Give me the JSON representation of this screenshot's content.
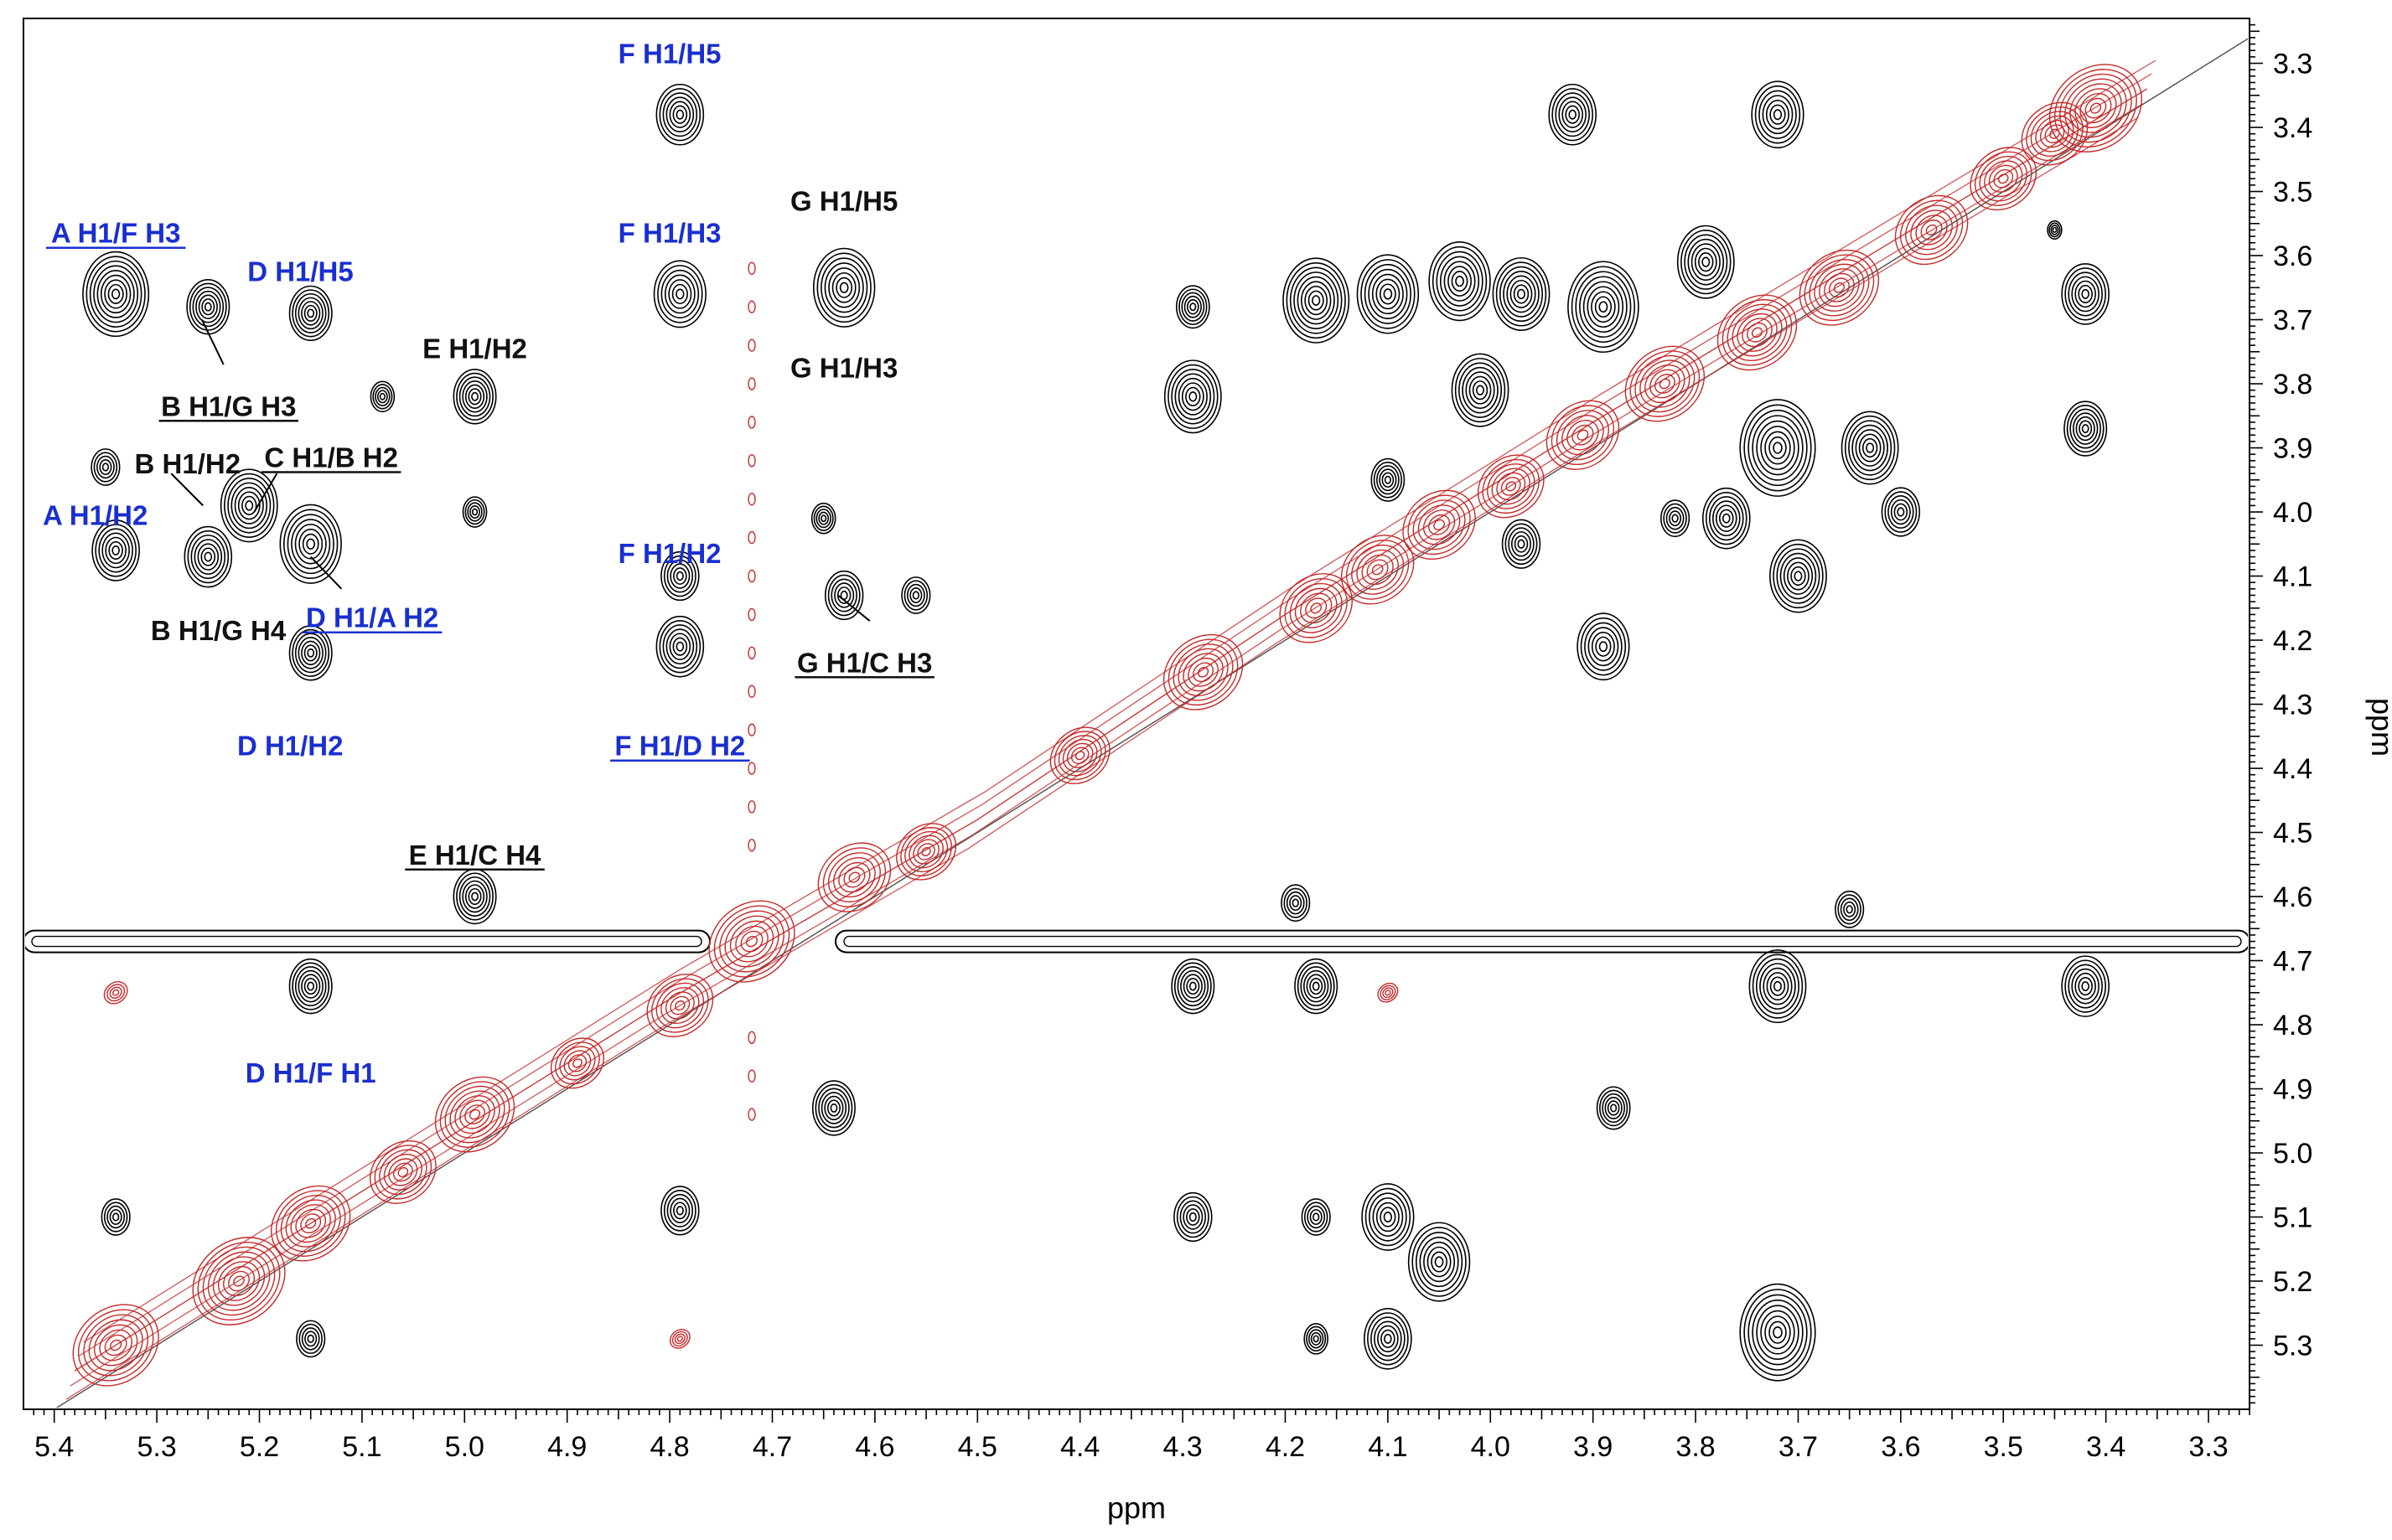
{
  "chart_data": {
    "type": "scatter",
    "xlabel": "ppm",
    "ylabel": "ppm",
    "xlim": [
      5.43,
      3.26
    ],
    "ylim": [
      3.23,
      5.4
    ],
    "x_reversed": true,
    "y_top_to_bottom": true,
    "x_ticks": [
      "5.4",
      "5.3",
      "5.2",
      "5.1",
      "5.0",
      "4.9",
      "4.8",
      "4.7",
      "4.6",
      "4.5",
      "4.4",
      "4.3",
      "4.2",
      "4.1",
      "4.0",
      "3.9",
      "3.8",
      "3.7",
      "3.6",
      "3.5",
      "3.4",
      "3.3"
    ],
    "y_ticks": [
      "3.3",
      "3.4",
      "3.5",
      "3.6",
      "3.7",
      "3.8",
      "3.9",
      "4.0",
      "4.1",
      "4.2",
      "4.3",
      "4.4",
      "4.5",
      "4.6",
      "4.7",
      "4.8",
      "4.9",
      "5.0",
      "5.1",
      "5.2",
      "5.3"
    ],
    "grid": false,
    "legend": "none",
    "colors": {
      "noe": "#000000",
      "diagonal": "#c62828",
      "label_blue": "#1a2fd0",
      "label_black": "#111111",
      "axis": "#000000"
    },
    "water_ridge_y": 4.67,
    "water_column_x": 4.72,
    "diagonal_peaks": [
      {
        "x": 5.34,
        "y": 5.3,
        "s": 1.3
      },
      {
        "x": 5.22,
        "y": 5.2,
        "s": 1.4
      },
      {
        "x": 5.15,
        "y": 5.11,
        "s": 1.2
      },
      {
        "x": 5.06,
        "y": 5.03,
        "s": 1.0
      },
      {
        "x": 4.99,
        "y": 4.94,
        "s": 1.2
      },
      {
        "x": 4.89,
        "y": 4.86,
        "s": 0.8
      },
      {
        "x": 4.79,
        "y": 4.77,
        "s": 1.0
      },
      {
        "x": 4.72,
        "y": 4.67,
        "s": 1.3
      },
      {
        "x": 4.62,
        "y": 4.57,
        "s": 1.1
      },
      {
        "x": 4.55,
        "y": 4.53,
        "s": 0.9
      },
      {
        "x": 4.4,
        "y": 4.38,
        "s": 0.9
      },
      {
        "x": 4.28,
        "y": 4.25,
        "s": 1.2
      },
      {
        "x": 4.17,
        "y": 4.15,
        "s": 1.1
      },
      {
        "x": 4.11,
        "y": 4.09,
        "s": 1.1
      },
      {
        "x": 4.05,
        "y": 4.02,
        "s": 1.1
      },
      {
        "x": 3.98,
        "y": 3.96,
        "s": 1.0
      },
      {
        "x": 3.91,
        "y": 3.88,
        "s": 1.1
      },
      {
        "x": 3.83,
        "y": 3.8,
        "s": 1.2
      },
      {
        "x": 3.74,
        "y": 3.72,
        "s": 1.2
      },
      {
        "x": 3.66,
        "y": 3.65,
        "s": 1.2
      },
      {
        "x": 3.57,
        "y": 3.56,
        "s": 1.1
      },
      {
        "x": 3.5,
        "y": 3.48,
        "s": 1.0
      },
      {
        "x": 3.45,
        "y": 3.41,
        "s": 1.0
      },
      {
        "x": 3.41,
        "y": 3.37,
        "s": 1.4
      },
      {
        "x": 4.1,
        "y": 4.75,
        "s": 0.3
      },
      {
        "x": 5.34,
        "y": 4.75,
        "s": 0.35
      },
      {
        "x": 4.79,
        "y": 5.29,
        "s": 0.3
      }
    ],
    "cross_peaks": [
      {
        "x": 5.34,
        "y": 3.66,
        "s": 1.4
      },
      {
        "x": 5.25,
        "y": 3.68,
        "s": 0.9
      },
      {
        "x": 5.15,
        "y": 3.69,
        "s": 0.9
      },
      {
        "x": 5.08,
        "y": 3.82,
        "s": 0.5
      },
      {
        "x": 5.35,
        "y": 3.93,
        "s": 0.6
      },
      {
        "x": 5.34,
        "y": 4.06,
        "s": 1.0
      },
      {
        "x": 5.25,
        "y": 4.07,
        "s": 1.0
      },
      {
        "x": 5.21,
        "y": 3.99,
        "s": 1.2
      },
      {
        "x": 5.15,
        "y": 4.05,
        "s": 1.3
      },
      {
        "x": 5.15,
        "y": 4.22,
        "s": 0.9
      },
      {
        "x": 4.99,
        "y": 3.82,
        "s": 0.9
      },
      {
        "x": 4.99,
        "y": 4.0,
        "s": 0.5
      },
      {
        "x": 4.99,
        "y": 4.6,
        "s": 0.9
      },
      {
        "x": 5.15,
        "y": 4.74,
        "s": 0.9
      },
      {
        "x": 5.34,
        "y": 5.1,
        "s": 0.6
      },
      {
        "x": 5.15,
        "y": 5.29,
        "s": 0.6
      },
      {
        "x": 4.79,
        "y": 3.38,
        "s": 1.0
      },
      {
        "x": 4.79,
        "y": 3.66,
        "s": 1.1
      },
      {
        "x": 4.79,
        "y": 4.1,
        "s": 0.8
      },
      {
        "x": 4.79,
        "y": 4.21,
        "s": 1.0
      },
      {
        "x": 4.79,
        "y": 5.09,
        "s": 0.8
      },
      {
        "x": 4.63,
        "y": 3.65,
        "s": 1.3
      },
      {
        "x": 4.65,
        "y": 4.01,
        "s": 0.5
      },
      {
        "x": 4.63,
        "y": 4.13,
        "s": 0.8
      },
      {
        "x": 4.56,
        "y": 4.13,
        "s": 0.6
      },
      {
        "x": 4.64,
        "y": 4.93,
        "s": 0.9
      },
      {
        "x": 4.29,
        "y": 3.68,
        "s": 0.7
      },
      {
        "x": 4.29,
        "y": 3.82,
        "s": 1.2
      },
      {
        "x": 4.29,
        "y": 4.74,
        "s": 0.9
      },
      {
        "x": 4.29,
        "y": 5.1,
        "s": 0.8
      },
      {
        "x": 4.17,
        "y": 3.67,
        "s": 1.4
      },
      {
        "x": 4.17,
        "y": 4.74,
        "s": 0.9
      },
      {
        "x": 4.17,
        "y": 5.1,
        "s": 0.6
      },
      {
        "x": 4.17,
        "y": 5.29,
        "s": 0.5
      },
      {
        "x": 4.1,
        "y": 3.66,
        "s": 1.3
      },
      {
        "x": 4.1,
        "y": 3.95,
        "s": 0.7
      },
      {
        "x": 4.1,
        "y": 5.1,
        "s": 1.1
      },
      {
        "x": 4.1,
        "y": 5.29,
        "s": 1.0
      },
      {
        "x": 4.05,
        "y": 5.17,
        "s": 1.3
      },
      {
        "x": 4.03,
        "y": 3.64,
        "s": 1.3
      },
      {
        "x": 4.01,
        "y": 3.81,
        "s": 1.2
      },
      {
        "x": 3.97,
        "y": 3.66,
        "s": 1.2
      },
      {
        "x": 3.97,
        "y": 4.05,
        "s": 0.8
      },
      {
        "x": 3.92,
        "y": 3.38,
        "s": 1.0
      },
      {
        "x": 3.89,
        "y": 3.68,
        "s": 1.5
      },
      {
        "x": 3.89,
        "y": 4.21,
        "s": 1.1
      },
      {
        "x": 3.88,
        "y": 4.93,
        "s": 0.7
      },
      {
        "x": 3.79,
        "y": 3.61,
        "s": 1.2
      },
      {
        "x": 3.72,
        "y": 3.38,
        "s": 1.1
      },
      {
        "x": 3.72,
        "y": 3.9,
        "s": 1.6
      },
      {
        "x": 3.77,
        "y": 4.01,
        "s": 1.0
      },
      {
        "x": 3.82,
        "y": 4.01,
        "s": 0.6
      },
      {
        "x": 3.7,
        "y": 4.1,
        "s": 1.2
      },
      {
        "x": 3.63,
        "y": 3.9,
        "s": 1.2
      },
      {
        "x": 3.6,
        "y": 4.0,
        "s": 0.8
      },
      {
        "x": 3.72,
        "y": 4.74,
        "s": 1.2
      },
      {
        "x": 3.72,
        "y": 5.28,
        "s": 1.6
      },
      {
        "x": 3.42,
        "y": 3.66,
        "s": 1.0
      },
      {
        "x": 3.42,
        "y": 3.87,
        "s": 0.9
      },
      {
        "x": 3.42,
        "y": 4.74,
        "s": 1.0
      },
      {
        "x": 3.45,
        "y": 3.56,
        "s": 0.3
      },
      {
        "x": 3.65,
        "y": 4.62,
        "s": 0.6
      },
      {
        "x": 4.19,
        "y": 4.61,
        "s": 0.6
      }
    ],
    "annotations": [
      {
        "text": "F H1/H5",
        "x": 4.8,
        "y": 3.3,
        "color": "blue",
        "underline": false
      },
      {
        "text": "A H1/F H3",
        "x": 5.34,
        "y": 3.58,
        "color": "blue",
        "underline": true
      },
      {
        "text": "D H1/H5",
        "x": 5.16,
        "y": 3.64,
        "color": "blue",
        "underline": false
      },
      {
        "text": "F H1/H3",
        "x": 4.8,
        "y": 3.58,
        "color": "blue",
        "underline": false
      },
      {
        "text": "G H1/H5",
        "x": 4.63,
        "y": 3.53,
        "color": "black",
        "underline": false
      },
      {
        "text": "E H1/H2",
        "x": 4.99,
        "y": 3.76,
        "color": "black",
        "underline": false
      },
      {
        "text": "B H1/G H3",
        "x": 5.23,
        "y": 3.85,
        "color": "black",
        "underline": true
      },
      {
        "text": "G H1/H3",
        "x": 4.63,
        "y": 3.79,
        "color": "black",
        "underline": false
      },
      {
        "text": "B H1/H2",
        "x": 5.27,
        "y": 3.94,
        "color": "black",
        "underline": false
      },
      {
        "text": "C H1/B H2",
        "x": 5.13,
        "y": 3.93,
        "color": "black",
        "underline": true
      },
      {
        "text": "A H1/H2",
        "x": 5.36,
        "y": 4.02,
        "color": "blue",
        "underline": false
      },
      {
        "text": "F H1/H2",
        "x": 4.8,
        "y": 4.08,
        "color": "blue",
        "underline": false
      },
      {
        "text": "B H1/G H4",
        "x": 5.24,
        "y": 4.2,
        "color": "black",
        "underline": false
      },
      {
        "text": "D H1/A H2",
        "x": 5.09,
        "y": 4.18,
        "color": "blue",
        "underline": true
      },
      {
        "text": "G H1/C H3",
        "x": 4.61,
        "y": 4.25,
        "color": "black",
        "underline": true
      },
      {
        "text": "D H1/H2",
        "x": 5.17,
        "y": 4.38,
        "color": "blue",
        "underline": false
      },
      {
        "text": "F H1/D H2",
        "x": 4.79,
        "y": 4.38,
        "color": "blue",
        "underline": true
      },
      {
        "text": "E H1/C H4",
        "x": 4.99,
        "y": 4.55,
        "color": "black",
        "underline": true
      },
      {
        "text": "D H1/F H1",
        "x": 5.15,
        "y": 4.89,
        "color": "blue",
        "underline": false
      }
    ],
    "leaders": [
      {
        "x1": 5.256,
        "y1": 3.7,
        "x2": 5.235,
        "y2": 3.77
      },
      {
        "x1": 5.286,
        "y1": 3.94,
        "x2": 5.255,
        "y2": 3.99
      },
      {
        "x1": 5.205,
        "y1": 4.0,
        "x2": 5.183,
        "y2": 3.94
      },
      {
        "x1": 5.15,
        "y1": 4.07,
        "x2": 5.12,
        "y2": 4.12
      },
      {
        "x1": 4.636,
        "y1": 4.13,
        "x2": 4.605,
        "y2": 4.17
      }
    ]
  }
}
